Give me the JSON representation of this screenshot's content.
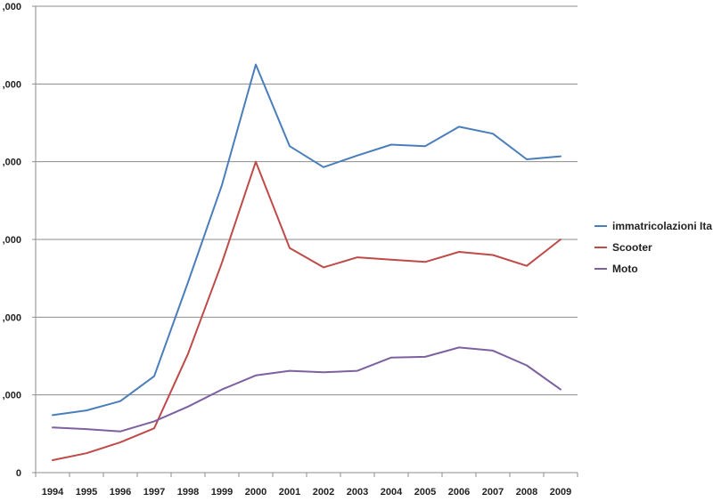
{
  "chart_data": {
    "type": "line",
    "title": "",
    "xlabel": "",
    "ylabel": "",
    "x": [
      "1994",
      "1995",
      "1996",
      "1997",
      "1998",
      "1999",
      "2000",
      "2001",
      "2002",
      "2003",
      "2004",
      "2005",
      "2006",
      "2007",
      "2008",
      "2009"
    ],
    "ylim": [
      0,
      600000
    ],
    "y_ticks": [
      0,
      100000,
      200000,
      300000,
      400000,
      500000,
      600000
    ],
    "y_tick_labels": [
      "0",
      ",000",
      ",000",
      ",000",
      ",000",
      ",000",
      ",000"
    ],
    "grid": true,
    "legend_position": "right",
    "series": [
      {
        "name": "immatricolazioni Ita",
        "color": "#4a7ebb",
        "values": [
          74000,
          80000,
          92000,
          124000,
          245000,
          370000,
          525000,
          420000,
          393000,
          408000,
          422000,
          420000,
          445000,
          436000,
          403000,
          407000
        ]
      },
      {
        "name": "Scooter",
        "color": "#be4b48",
        "values": [
          16000,
          25000,
          39000,
          57000,
          153000,
          270000,
          400000,
          289000,
          264000,
          277000,
          274000,
          271000,
          284000,
          280000,
          266000,
          300000
        ]
      },
      {
        "name": "Moto",
        "color": "#7d60a0",
        "values": [
          58000,
          56000,
          53000,
          66000,
          85000,
          107000,
          125000,
          131000,
          129000,
          131000,
          148000,
          149000,
          161000,
          157000,
          138000,
          107000
        ]
      }
    ]
  }
}
